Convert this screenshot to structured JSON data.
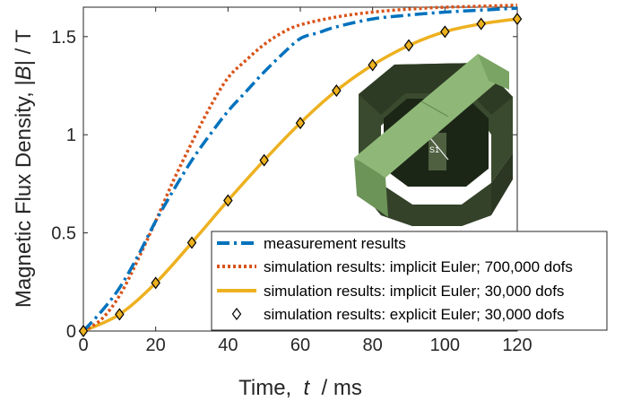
{
  "chart_data": {
    "type": "line",
    "xlabel": {
      "prefix": "Time,  ",
      "symbol": "t",
      "suffix": "  / ms"
    },
    "ylabel": {
      "prefix": "Magnetic Flux Density, |",
      "symbol": "B",
      "suffix": "| / T"
    },
    "xlim": [
      0,
      120
    ],
    "ylim": [
      0,
      1.65
    ],
    "xticks": [
      0,
      20,
      40,
      60,
      80,
      100,
      120
    ],
    "yticks": [
      0,
      0.5,
      1,
      1.5
    ],
    "xtick_labels": [
      "0",
      "20",
      "40",
      "60",
      "80",
      "100",
      "120"
    ],
    "ytick_labels": [
      "0",
      "0.5",
      "1",
      "1.5"
    ],
    "grid": false,
    "legend_position": "bottom-right",
    "series": [
      {
        "name": "measurement results",
        "style": "dash-dot",
        "color": "#0072BD",
        "x": [
          0,
          5,
          10,
          15,
          20,
          25,
          30,
          35,
          40,
          45,
          50,
          55,
          60,
          65,
          70,
          80,
          90,
          100,
          110,
          120
        ],
        "y": [
          0.0,
          0.1,
          0.22,
          0.38,
          0.56,
          0.72,
          0.87,
          1.0,
          1.12,
          1.22,
          1.32,
          1.41,
          1.49,
          1.52,
          1.55,
          1.59,
          1.61,
          1.625,
          1.635,
          1.645
        ]
      },
      {
        "name": "simulation results: implicit Euler; 700,000 dofs",
        "style": "dotted",
        "color": "#D95319",
        "x": [
          0,
          5,
          10,
          15,
          20,
          25,
          30,
          35,
          40,
          45,
          50,
          55,
          60,
          70,
          80,
          90,
          100,
          110,
          120
        ],
        "y": [
          0.0,
          0.06,
          0.18,
          0.36,
          0.56,
          0.77,
          0.96,
          1.14,
          1.29,
          1.38,
          1.46,
          1.52,
          1.56,
          1.6,
          1.625,
          1.64,
          1.65,
          1.655,
          1.66
        ]
      },
      {
        "name": "simulation results: implicit Euler;   30,000 dofs",
        "style": "solid",
        "color": "#EDB120",
        "x": [
          0,
          10,
          20,
          30,
          40,
          50,
          60,
          70,
          80,
          90,
          100,
          110,
          120
        ],
        "y": [
          0.0,
          0.085,
          0.245,
          0.45,
          0.665,
          0.87,
          1.06,
          1.225,
          1.355,
          1.455,
          1.525,
          1.565,
          1.59
        ]
      },
      {
        "name": "simulation results: explicit Euler;   30,000 dofs",
        "style": "diamond-markers",
        "color": "#000000",
        "x": [
          0,
          10,
          20,
          30,
          40,
          50,
          60,
          70,
          80,
          90,
          100,
          110,
          120
        ],
        "y": [
          0.0,
          0.085,
          0.245,
          0.45,
          0.665,
          0.87,
          1.06,
          1.225,
          1.355,
          1.455,
          1.525,
          1.565,
          1.59
        ]
      }
    ],
    "inset": {
      "label": "S1",
      "core_dark": "#2e3b24",
      "core_mid": "#3a4a2e",
      "yoke_light": "#8fb878",
      "yoke_mid": "#7aa464"
    }
  }
}
